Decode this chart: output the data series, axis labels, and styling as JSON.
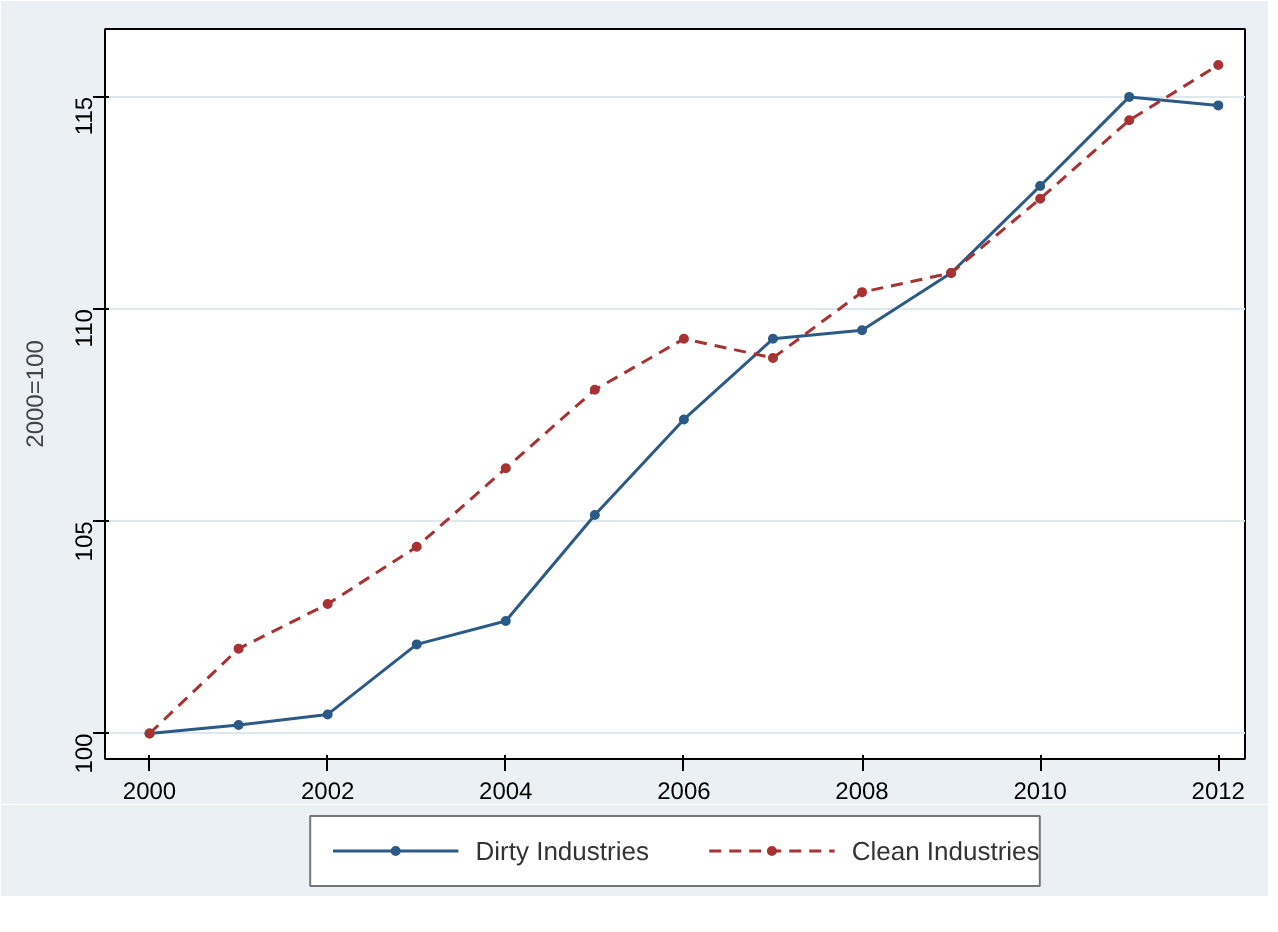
{
  "chart_data": {
    "type": "line",
    "ylabel": "2000=100",
    "x": [
      2000,
      2001,
      2002,
      2003,
      2004,
      2005,
      2006,
      2007,
      2008,
      2009,
      2010,
      2011,
      2012
    ],
    "series": [
      {
        "name": "Dirty Industries",
        "color": "#2b5a87",
        "line_style": "solid",
        "values": [
          100,
          100.2,
          100.45,
          102.1,
          102.65,
          105.15,
          107.4,
          109.3,
          109.5,
          110.85,
          112.9,
          115.0,
          114.8
        ]
      },
      {
        "name": "Clean Industries",
        "color": "#a83232",
        "line_style": "dashed",
        "values": [
          100,
          102.0,
          103.05,
          104.4,
          106.25,
          108.1,
          109.3,
          108.85,
          110.4,
          110.85,
          112.6,
          114.45,
          115.75
        ]
      }
    ],
    "xlim": [
      1999.5,
      2012.3
    ],
    "ylim": [
      99.4,
      116.6
    ],
    "xticks": [
      2000,
      2002,
      2004,
      2006,
      2008,
      2010,
      2012
    ],
    "yticks": [
      100,
      105,
      110,
      115
    ],
    "grid": "y",
    "legend": "bottom",
    "marker": "circle"
  }
}
